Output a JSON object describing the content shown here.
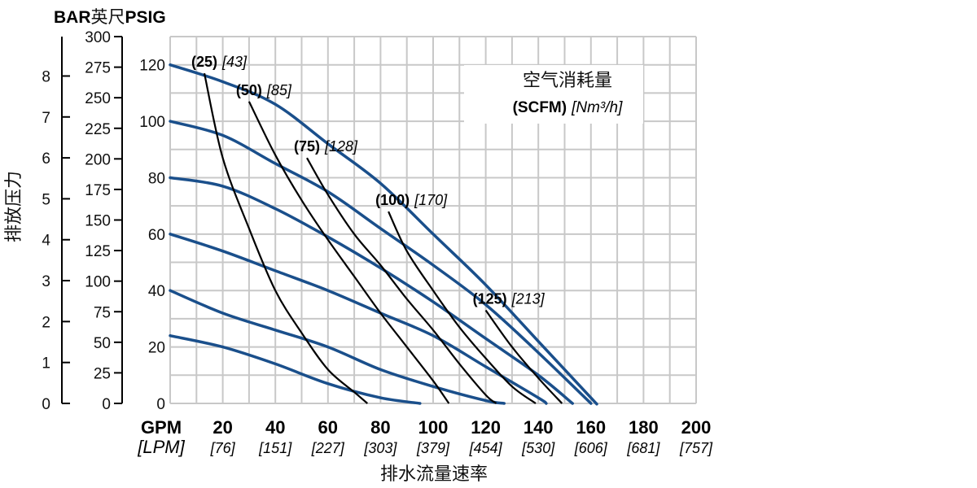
{
  "chart_data": {
    "type": "line",
    "y_left_header": "BAR",
    "y_mid_header": "英尺",
    "y_right_header": "PSIG",
    "ylabel": "排放压力",
    "xlabel": "排水流量速率",
    "x_unit_gpm": "GPM",
    "x_unit_lpm": "[LPM]",
    "legend_title": "空气消耗量",
    "legend_unit_bold": "(SCFM)",
    "legend_unit_italic": "[Nm³/h]",
    "xlim_gpm": [
      0,
      200
    ],
    "ylim_psig": [
      0,
      120
    ],
    "x_ticks": [
      {
        "gpm": "20",
        "lpm": "[76]"
      },
      {
        "gpm": "40",
        "lpm": "[151]"
      },
      {
        "gpm": "60",
        "lpm": "[227]"
      },
      {
        "gpm": "80",
        "lpm": "[303]"
      },
      {
        "gpm": "100",
        "lpm": "[379]"
      },
      {
        "gpm": "120",
        "lpm": "[454]"
      },
      {
        "gpm": "140",
        "lpm": "[530]"
      },
      {
        "gpm": "160",
        "lpm": "[606]"
      },
      {
        "gpm": "180",
        "lpm": "[681]"
      },
      {
        "gpm": "200",
        "lpm": "[757]"
      }
    ],
    "psig_ticks": [
      "0",
      "20",
      "40",
      "60",
      "80",
      "100",
      "120"
    ],
    "feet_ticks": [
      "0",
      "25",
      "50",
      "75",
      "100",
      "125",
      "150",
      "175",
      "200",
      "225",
      "250",
      "275",
      "300"
    ],
    "bar_ticks": [
      "0",
      "1",
      "2",
      "3",
      "4",
      "5",
      "6",
      "7",
      "8"
    ],
    "grid": true,
    "colors": {
      "pressure_series": "#1a4f8b",
      "air_curves": "#000000",
      "grid": "#c8c8c8"
    },
    "pressure_series": [
      {
        "x": [
          0,
          20,
          40,
          60,
          80,
          95
        ],
        "y": [
          24,
          20,
          14,
          7,
          2,
          0
        ]
      },
      {
        "x": [
          0,
          20,
          40,
          60,
          80,
          100,
          120,
          127
        ],
        "y": [
          40,
          32,
          26,
          20,
          12,
          6,
          1,
          0
        ]
      },
      {
        "x": [
          0,
          20,
          40,
          60,
          80,
          100,
          120,
          140,
          143
        ],
        "y": [
          60,
          54,
          47,
          40,
          32,
          24,
          13,
          2,
          0
        ]
      },
      {
        "x": [
          0,
          20,
          40,
          60,
          80,
          100,
          120,
          140,
          153
        ],
        "y": [
          80,
          77,
          69,
          59,
          48,
          36,
          23,
          10,
          0
        ]
      },
      {
        "x": [
          0,
          20,
          40,
          60,
          80,
          100,
          120,
          140,
          160
        ],
        "y": [
          100,
          95,
          85,
          75,
          62,
          49,
          35,
          18,
          0
        ]
      },
      {
        "x": [
          0,
          20,
          40,
          60,
          80,
          100,
          120,
          140,
          160,
          162
        ],
        "y": [
          120,
          114,
          106,
          92,
          78,
          60,
          42,
          22,
          2,
          0
        ]
      }
    ],
    "air_curves": [
      {
        "label": "(25)",
        "label_metric": "[43]",
        "x": [
          13,
          20,
          30,
          40,
          50,
          60,
          70,
          75
        ],
        "y": [
          117,
          87,
          62,
          40,
          25,
          12,
          4,
          0
        ]
      },
      {
        "label": "(50)",
        "label_metric": "[85]",
        "x": [
          30,
          40,
          50,
          60,
          70,
          80,
          90,
          100,
          106
        ],
        "y": [
          107,
          88,
          72,
          58,
          45,
          32,
          20,
          8,
          0
        ]
      },
      {
        "label": "(75)",
        "label_metric": "[128]",
        "x": [
          52,
          60,
          70,
          80,
          90,
          100,
          110,
          120,
          124
        ],
        "y": [
          87,
          74,
          60,
          49,
          37,
          26,
          14,
          3,
          0
        ]
      },
      {
        "label": "(100)",
        "label_metric": "[170]",
        "x": [
          83,
          90,
          100,
          110,
          120,
          130,
          139
        ],
        "y": [
          68,
          54,
          40,
          27,
          16,
          6,
          0
        ]
      },
      {
        "label": "(125)",
        "label_metric": "[213]",
        "x": [
          120,
          130,
          140,
          149
        ],
        "y": [
          33,
          20,
          9,
          0
        ]
      }
    ]
  }
}
